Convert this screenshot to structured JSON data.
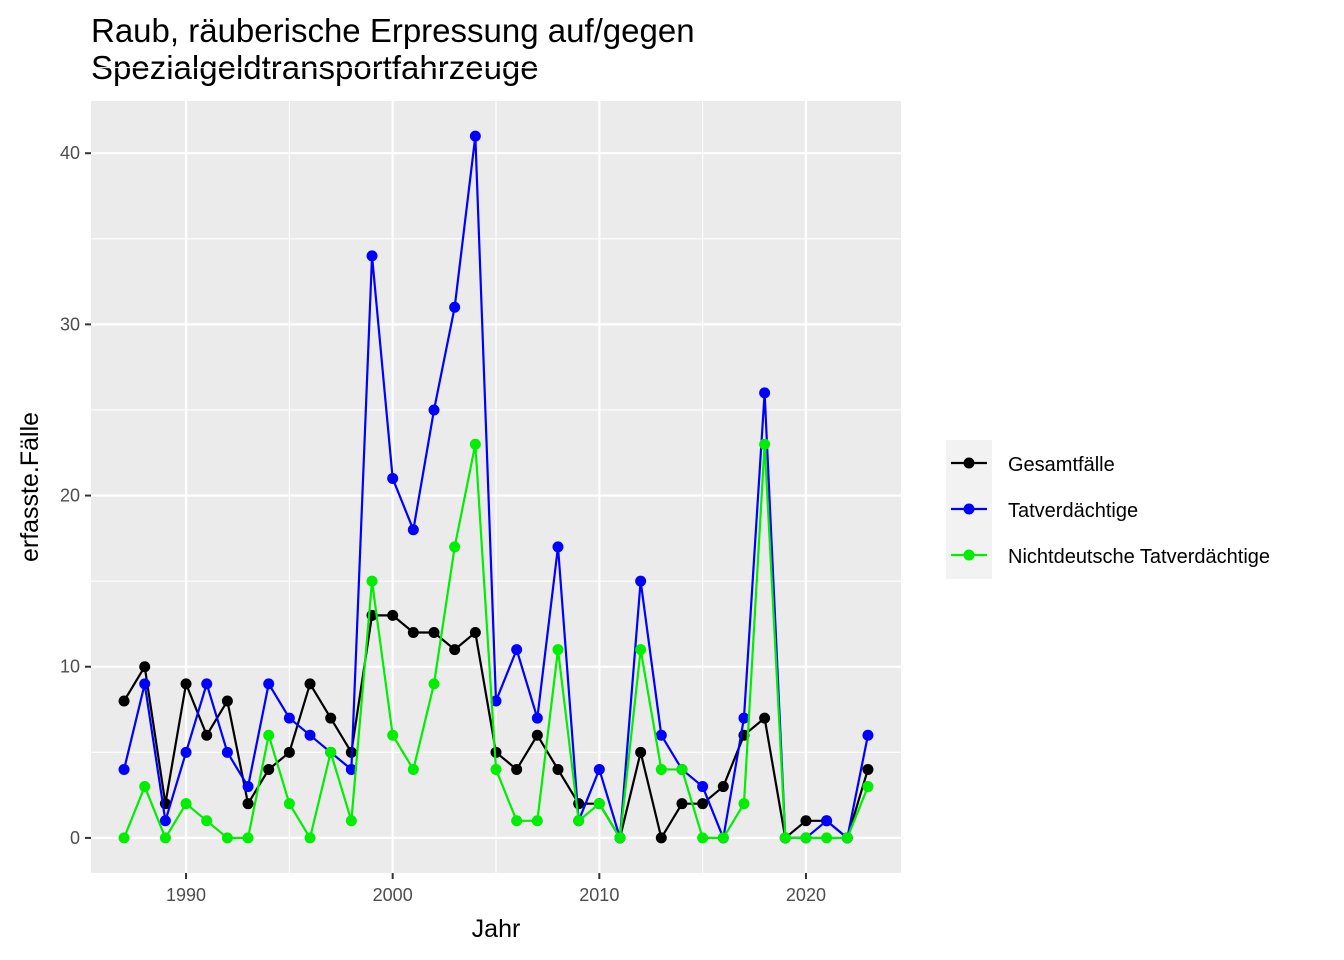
{
  "chart_data": {
    "type": "line",
    "title_lines": [
      "Raub, räuberische Erpressung auf/gegen",
      "Spezialgeldtransportfahrzeuge"
    ],
    "xlabel": "Jahr",
    "ylabel": "erfasste.Fälle",
    "xlim": [
      1985.4,
      2024.6
    ],
    "ylim": [
      -2.05,
      43.05
    ],
    "xticks": [
      1990,
      2000,
      2010,
      2020
    ],
    "yticks": [
      0,
      10,
      20,
      30,
      40
    ],
    "grid": true,
    "legend_position": "right",
    "x": [
      1987,
      1988,
      1989,
      1990,
      1991,
      1992,
      1993,
      1994,
      1995,
      1996,
      1997,
      1998,
      1999,
      2000,
      2001,
      2002,
      2003,
      2004,
      2005,
      2006,
      2007,
      2008,
      2009,
      2010,
      2011,
      2012,
      2013,
      2014,
      2015,
      2016,
      2017,
      2018,
      2019,
      2020,
      2021,
      2022,
      2023
    ],
    "series": [
      {
        "name": "Gesamtfälle",
        "color": "#000000",
        "values": [
          8,
          10,
          2,
          9,
          6,
          8,
          2,
          4,
          5,
          9,
          7,
          5,
          13,
          13,
          12,
          12,
          11,
          12,
          5,
          4,
          6,
          4,
          2,
          2,
          0,
          5,
          0,
          2,
          2,
          3,
          6,
          7,
          0,
          1,
          1,
          0,
          4
        ]
      },
      {
        "name": "Tatverdächtige",
        "color": "#0000ff",
        "values": [
          4,
          9,
          1,
          5,
          9,
          5,
          3,
          9,
          7,
          6,
          5,
          4,
          34,
          21,
          18,
          25,
          31,
          41,
          8,
          11,
          7,
          17,
          1,
          4,
          0,
          15,
          6,
          4,
          3,
          0,
          7,
          26,
          0,
          0,
          1,
          0,
          6
        ]
      },
      {
        "name": "Nichtdeutsche Tatverdächtige",
        "color": "#00ee00",
        "values": [
          0,
          3,
          0,
          2,
          1,
          0,
          0,
          6,
          2,
          0,
          5,
          1,
          15,
          6,
          4,
          9,
          17,
          23,
          4,
          1,
          1,
          11,
          1,
          2,
          0,
          11,
          4,
          4,
          0,
          0,
          2,
          23,
          0,
          0,
          0,
          0,
          3
        ]
      }
    ]
  },
  "colors": {
    "panel_background": "#ebebeb",
    "grid_major": "#ffffff",
    "axis_text": "#4d4d4d"
  }
}
